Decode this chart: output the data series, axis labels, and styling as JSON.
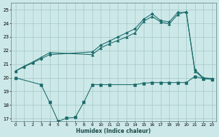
{
  "background_color": "#cde8e8",
  "grid_color": "#a8cccc",
  "line_color": "#1a6b6b",
  "xlim": [
    -0.5,
    23.5
  ],
  "ylim": [
    16.8,
    25.5
  ],
  "yticks": [
    17,
    18,
    19,
    20,
    21,
    22,
    23,
    24,
    25
  ],
  "xticks": [
    0,
    1,
    2,
    3,
    4,
    5,
    6,
    7,
    8,
    9,
    10,
    11,
    12,
    13,
    14,
    15,
    16,
    17,
    18,
    19,
    20,
    21,
    22,
    23
  ],
  "xlabel": "Humidex (Indice chaleur)",
  "series": [
    {
      "x": [
        0,
        1,
        2,
        3,
        4,
        9,
        10,
        11,
        12,
        13,
        14,
        15,
        16,
        17,
        18,
        19,
        20,
        21,
        22,
        23
      ],
      "y": [
        20.5,
        20.8,
        21.1,
        21.4,
        21.7,
        21.9,
        22.4,
        22.7,
        23.0,
        23.3,
        23.6,
        24.3,
        24.7,
        24.2,
        24.1,
        24.8,
        24.8,
        20.6,
        20.0,
        19.95
      ],
      "marker": "D",
      "markersize": 2.2
    },
    {
      "x": [
        0,
        1,
        2,
        3,
        4,
        9,
        10,
        11,
        12,
        13,
        14,
        15,
        16,
        17,
        18,
        19,
        20,
        21,
        22,
        23
      ],
      "y": [
        20.5,
        20.85,
        21.15,
        21.5,
        21.85,
        21.7,
        22.2,
        22.5,
        22.75,
        23.0,
        23.3,
        24.15,
        24.5,
        24.1,
        23.95,
        24.65,
        24.85,
        20.5,
        19.95,
        19.9
      ],
      "marker": "^",
      "markersize": 2.8
    },
    {
      "x": [
        0,
        3,
        4,
        5,
        6,
        7,
        8,
        9,
        10,
        11,
        14,
        15,
        16,
        17,
        18,
        19,
        20,
        21,
        22,
        23
      ],
      "y": [
        20.0,
        19.5,
        18.2,
        16.8,
        17.05,
        17.1,
        18.2,
        19.5,
        19.5,
        19.5,
        19.5,
        19.6,
        19.65,
        19.65,
        19.65,
        19.65,
        19.65,
        20.1,
        19.95,
        19.9
      ],
      "marker": "s",
      "markersize": 2.2
    }
  ]
}
